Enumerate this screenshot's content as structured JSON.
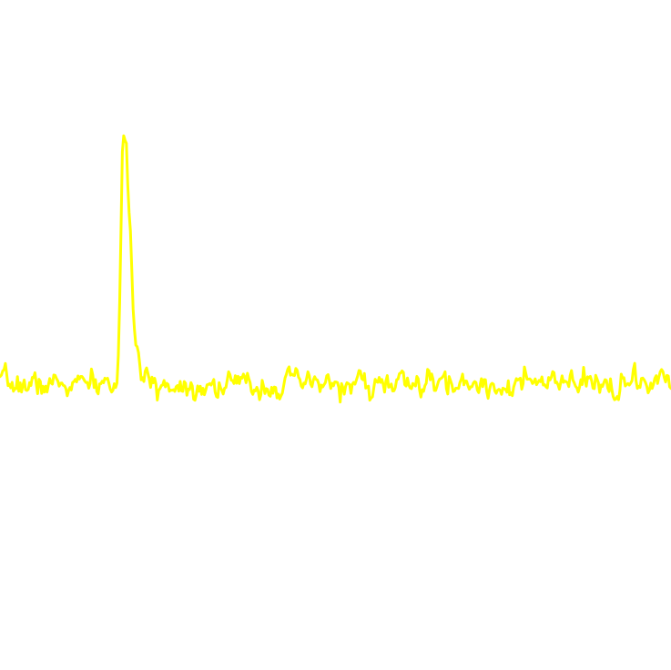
{
  "chart_data": {
    "type": "line",
    "title": "",
    "xlabel": "",
    "ylabel": "",
    "grid": false,
    "legend": "none",
    "xlim": [
      0,
      1
    ],
    "ylim": [
      -1.15,
      1.55
    ],
    "line_color": "#ffff00",
    "background_color": "#ffffff",
    "baseline": 0.0,
    "noise_amplitude": 0.05,
    "seed": 7,
    "n_points": 500,
    "peaks": [
      {
        "center": 0.1835,
        "height": 0.98,
        "rise": 0.0035,
        "decay": 0.0105
      }
    ],
    "series": [
      {
        "values_description": ""
      }
    ]
  }
}
